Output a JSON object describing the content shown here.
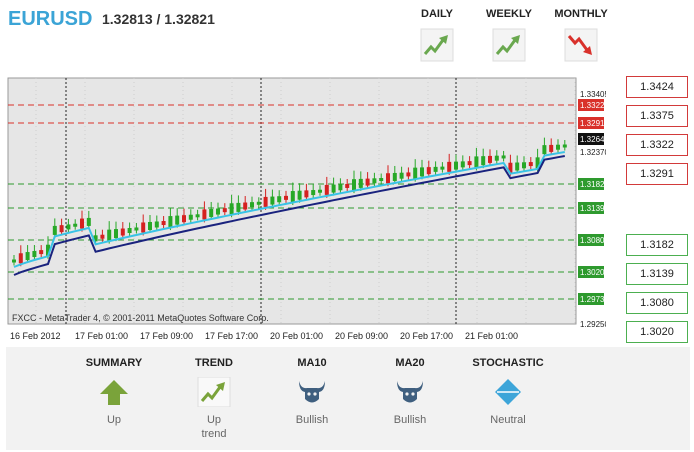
{
  "header": {
    "symbol": "EURUSD",
    "quotes": "1.32813 / 1.32821"
  },
  "timeframes": [
    {
      "label": "DAILY",
      "icon": "up-trend-icon",
      "color": "#6aa84f"
    },
    {
      "label": "WEEKLY",
      "icon": "up-trend-icon",
      "color": "#6aa84f"
    },
    {
      "label": "MONTHLY",
      "icon": "down-trend-icon",
      "color": "#d9312b"
    }
  ],
  "chart": {
    "watermark": "FXCC - MetaTrader 4, © 2001-2011 MetaQuotes Software Corp.",
    "y_ticks": [
      "1.33405",
      "1.32370",
      "1.29250"
    ],
    "current_price": "1.32649",
    "resistance_tags": [
      "1.33224",
      "1.32919"
    ],
    "support_tags": [
      "1.31824",
      "1.31392",
      "1.30805",
      "1.30205",
      "1.29732"
    ],
    "x_labels": [
      "16 Feb 2012",
      "17 Feb 01:00",
      "17 Feb 09:00",
      "17 Feb 17:00",
      "20 Feb 01:00",
      "20 Feb 09:00",
      "20 Feb 17:00",
      "21 Feb 01:00"
    ],
    "colors": {
      "bull": "#27a827",
      "bear": "#d52020",
      "ma_fast": "#39c3e6",
      "ma_slow": "#1a237e",
      "background": "#e6e6e6"
    }
  },
  "levels": {
    "resistance": [
      "1.3424",
      "1.3375",
      "1.3322",
      "1.3291"
    ],
    "support": [
      "1.3182",
      "1.3139",
      "1.3080",
      "1.3020"
    ]
  },
  "summary": [
    {
      "title": "SUMMARY",
      "icon": "up-arrow-icon",
      "value": "Up"
    },
    {
      "title": "TREND",
      "icon": "up-trend-icon",
      "value": "Up\ntrend"
    },
    {
      "title": "MA10",
      "icon": "bull-icon",
      "value": "Bullish"
    },
    {
      "title": "MA20",
      "icon": "bull-icon",
      "value": "Bullish"
    },
    {
      "title": "STOCHASTIC",
      "icon": "neutral-diamond-icon",
      "value": "Neutral"
    }
  ]
}
